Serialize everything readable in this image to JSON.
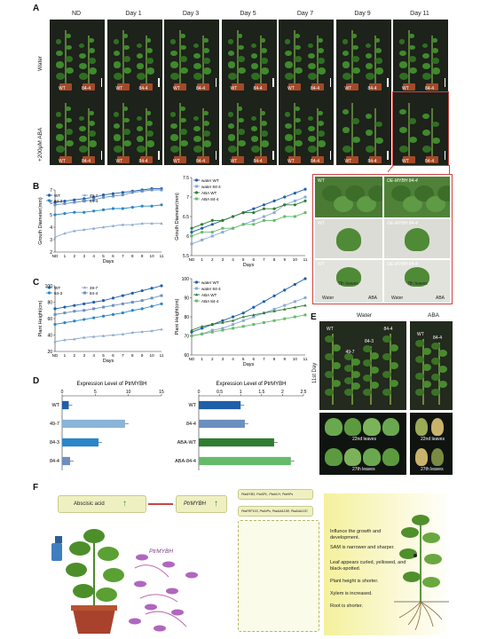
{
  "panel_labels": {
    "A": "A",
    "B": "B",
    "C": "C",
    "D": "D",
    "E": "E",
    "F": "F"
  },
  "panelA": {
    "days": [
      "ND",
      "Day 1",
      "Day 3",
      "Day 5",
      "Day 7",
      "Day 9",
      "Day 11"
    ],
    "rows": [
      "Water",
      "+200μM ABA"
    ],
    "plant_labels": [
      "WT",
      "84-4"
    ]
  },
  "chart_data": [
    {
      "type": "line",
      "title": "",
      "xlabel": "Days",
      "ylabel": "Grouth Diameter(mm)",
      "categories": [
        "ND",
        "1",
        "2",
        "3",
        "4",
        "5",
        "6",
        "7",
        "8",
        "9",
        "10",
        "11"
      ],
      "ylim": [
        2,
        7
      ],
      "series": [
        {
          "name": "WT",
          "values": [
            6.0,
            6.1,
            6.2,
            6.3,
            6.4,
            6.6,
            6.7,
            6.8,
            6.9,
            7.0,
            7.1,
            7.1
          ]
        },
        {
          "name": "49-7",
          "values": [
            3.2,
            3.5,
            3.7,
            3.8,
            3.9,
            4.0,
            4.1,
            4.2,
            4.2,
            4.3,
            4.3,
            4.3
          ]
        },
        {
          "name": "84-3",
          "values": [
            5.0,
            5.1,
            5.2,
            5.2,
            5.3,
            5.4,
            5.5,
            5.5,
            5.6,
            5.7,
            5.7,
            5.8
          ]
        },
        {
          "name": "84-4",
          "values": [
            5.8,
            5.9,
            6.0,
            6.1,
            6.2,
            6.4,
            6.5,
            6.6,
            6.8,
            6.9,
            7.0,
            7.0
          ]
        }
      ]
    },
    {
      "type": "line",
      "title": "",
      "xlabel": "Days",
      "ylabel": "Grouth Diameter(mm)",
      "categories": [
        "ND",
        "1",
        "2",
        "3",
        "4",
        "5",
        "6",
        "7",
        "8",
        "9",
        "10",
        "11"
      ],
      "ylim": [
        5.5,
        7.5
      ],
      "series": [
        {
          "name": "water WT",
          "values": [
            6.1,
            6.2,
            6.3,
            6.4,
            6.5,
            6.6,
            6.7,
            6.8,
            6.9,
            7.0,
            7.1,
            7.2
          ]
        },
        {
          "name": "water 84-4",
          "values": [
            5.8,
            5.9,
            6.0,
            6.1,
            6.2,
            6.3,
            6.4,
            6.5,
            6.6,
            6.8,
            6.9,
            7.0
          ]
        },
        {
          "name": "ABA WT",
          "values": [
            6.2,
            6.3,
            6.4,
            6.4,
            6.5,
            6.6,
            6.6,
            6.7,
            6.7,
            6.8,
            6.8,
            6.9
          ]
        },
        {
          "name": "ABA 84-4",
          "values": [
            6.0,
            6.1,
            6.1,
            6.2,
            6.2,
            6.3,
            6.3,
            6.4,
            6.4,
            6.5,
            6.5,
            6.6
          ]
        }
      ]
    },
    {
      "type": "line",
      "title": "",
      "xlabel": "Days",
      "ylabel": "Plant Height(cm)",
      "categories": [
        "ND",
        "1",
        "2",
        "3",
        "4",
        "5",
        "6",
        "7",
        "8",
        "9",
        "10",
        "11"
      ],
      "ylim": [
        20,
        100
      ],
      "series": [
        {
          "name": "WT",
          "values": [
            72,
            74,
            76,
            78,
            80,
            82,
            85,
            88,
            91,
            94,
            97,
            100
          ]
        },
        {
          "name": "49-7",
          "values": [
            32,
            34,
            35,
            37,
            38,
            39,
            40,
            41,
            43,
            44,
            45,
            47
          ]
        },
        {
          "name": "84-3",
          "values": [
            53,
            55,
            57,
            59,
            61,
            63,
            65,
            67,
            70,
            72,
            75,
            78
          ]
        },
        {
          "name": "84-4",
          "values": [
            65,
            67,
            69,
            70,
            72,
            74,
            76,
            78,
            80,
            82,
            85,
            88
          ]
        }
      ]
    },
    {
      "type": "line",
      "title": "",
      "xlabel": "Days",
      "ylabel": "Plant Height(cm)",
      "categories": [
        "ND",
        "1",
        "2",
        "3",
        "4",
        "5",
        "6",
        "7",
        "8",
        "9",
        "10",
        "11"
      ],
      "ylim": [
        60,
        100
      ],
      "series": [
        {
          "name": "water WT",
          "values": [
            72,
            74,
            76,
            78,
            80,
            82,
            85,
            88,
            91,
            94,
            97,
            100
          ]
        },
        {
          "name": "water 84-4",
          "values": [
            70,
            71,
            73,
            74,
            76,
            78,
            80,
            82,
            84,
            86,
            88,
            90
          ]
        },
        {
          "name": "ABA WT",
          "values": [
            73,
            75,
            76,
            77,
            78,
            80,
            81,
            82,
            83,
            84,
            85,
            86
          ]
        },
        {
          "name": "ABA 84-4",
          "values": [
            70,
            71,
            72,
            73,
            74,
            75,
            76,
            77,
            78,
            79,
            80,
            81
          ]
        }
      ]
    },
    {
      "type": "bar",
      "title": "Expression Level of PtrMYBH",
      "xlabel": "",
      "ylabel": "",
      "categories": [
        "WT",
        "49-7",
        "84-3",
        "84-4"
      ],
      "values": [
        1,
        9.5,
        5.5,
        1.2
      ],
      "xlim": [
        0,
        15
      ]
    },
    {
      "type": "bar",
      "title": "Expression Level of PtrMYBH",
      "xlabel": "",
      "ylabel": "",
      "categories": [
        "WT",
        "84-4",
        "ABA-WT",
        "ABA-84-4"
      ],
      "values": [
        1,
        1.1,
        1.8,
        2.2
      ],
      "xlim": [
        0,
        2.5
      ]
    }
  ],
  "panelB_right_photos": [
    "WT",
    "OE-MYBH 84-4",
    "WT",
    "OE-MYBH 84-4",
    "WT",
    "OE-MYBH 84-4"
  ],
  "panelB_right_leaf_labels": [
    "7th leaves",
    "7th leaves"
  ],
  "panelB_right_treat": [
    "Water",
    "ABA",
    "Water",
    "ABA"
  ],
  "panelE": {
    "cols": [
      "Water",
      "ABA"
    ],
    "day_label": "11st Day",
    "top_labels_water": [
      "WT",
      "49-7",
      "84-3",
      "84-4"
    ],
    "top_labels_aba": [
      "WT",
      "84-4"
    ],
    "leaves": [
      "22nd leaves",
      "27th leaves",
      "22nd leaves",
      "27th leaves"
    ]
  },
  "panelF": {
    "aba": "Abscisic acid",
    "myb": "PtrMYBH",
    "myb_italic": "PtrMYBH",
    "genes_up": "PtaMYB3, PtaSPL, PtaHLH, PtaNPs",
    "genes_down": "PtaERF103, PtaNPs, PtaAAA13B, PtaAAA13C",
    "effects": [
      "Influnce the growth and development.",
      "SAM is narrower and sharper.",
      "Leaf appears curled, yellowed, and black-spotted.",
      "Plant height is shorter.",
      "Xylem is increased.",
      "Root is shorter."
    ]
  },
  "colors": {
    "wt": "#1f5fa8",
    "l497": "#8aa8d0",
    "l843": "#2a86c8",
    "l844": "#6c8fc0",
    "aba_wt": "#2e7d32",
    "aba_844": "#66bb6a",
    "accent": "#c44"
  }
}
